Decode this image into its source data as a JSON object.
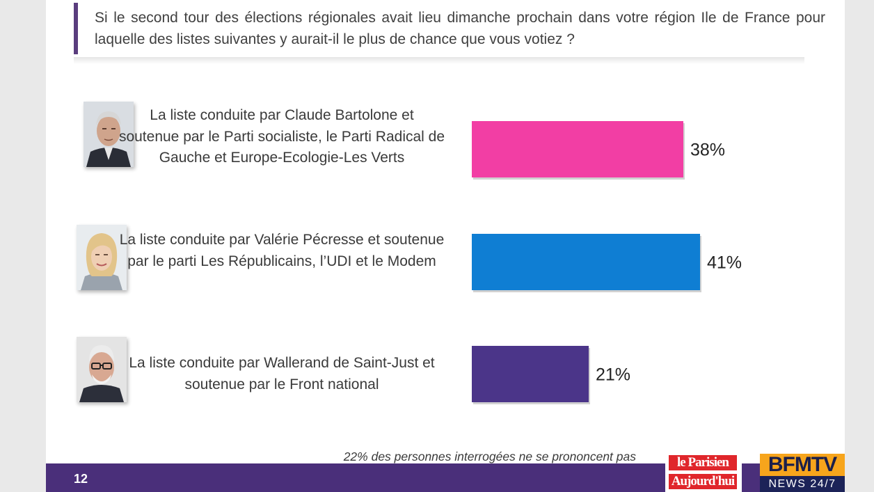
{
  "slide": {
    "question": "Si le second tour des élections régionales avait lieu dimanche prochain dans votre région Ile de France pour laquelle des listes suivantes y aurait-il le plus de chance que vous votiez ?",
    "footnote": "22% des personnes interrogées ne se prononcent pas",
    "page_number": "12"
  },
  "logos": {
    "parisien_line1": "le Parisien",
    "parisien_line2": "Aujourd'hui",
    "bfm_top": "BFMTV",
    "bfm_bottom": "NEWS 24/7"
  },
  "chart_data": {
    "type": "bar",
    "orientation": "horizontal",
    "categories": [
      "La liste conduite par Claude Bartolone et soutenue par le Parti socialiste, le Parti Radical de Gauche et Europe-Ecologie-Les Verts",
      "La liste conduite par Valérie Pécresse et soutenue par le parti Les Républicains, l’UDI et le Modem",
      "La liste conduite par Wallerand de Saint-Just et soutenue par le Front national"
    ],
    "values": [
      38,
      41,
      21
    ],
    "value_labels": [
      "38%",
      "41%",
      "21%"
    ],
    "colors": [
      "#f23ea4",
      "#0f7ed3",
      "#4b3589"
    ],
    "unit": "%",
    "xlim": [
      0,
      55
    ],
    "grid": false,
    "legend": "none"
  }
}
